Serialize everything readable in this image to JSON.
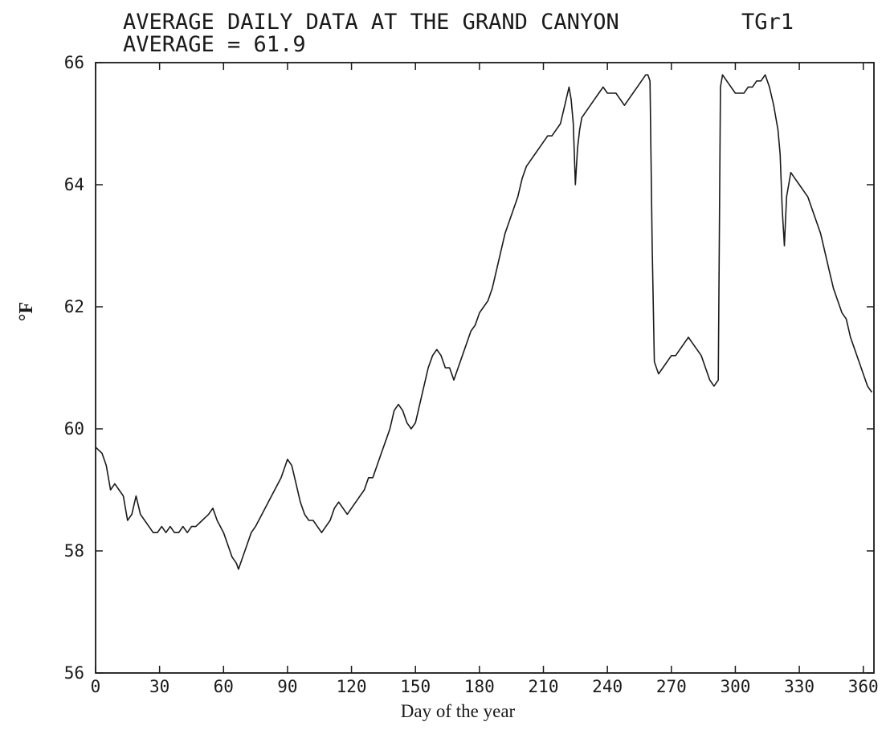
{
  "chart_data": {
    "type": "line",
    "title": "AVERAGE DAILY DATA AT THE GRAND CANYON",
    "title_tag": "TGr1",
    "subtitle": "AVERAGE = 61.9",
    "xlabel": "Day of the year",
    "ylabel": "°F",
    "xlim": [
      0,
      365
    ],
    "ylim": [
      56,
      66
    ],
    "xticks": [
      0,
      30,
      60,
      90,
      120,
      150,
      180,
      210,
      240,
      270,
      300,
      330,
      360
    ],
    "xtick_labels": [
      "0",
      "30",
      "60",
      "90",
      "120",
      "150",
      "180",
      "210",
      "240",
      "270",
      "300",
      "330",
      "360"
    ],
    "yticks": [
      56,
      58,
      60,
      62,
      64,
      66
    ],
    "ytick_labels": [
      "56",
      "58",
      "60",
      "62",
      "64",
      "66"
    ],
    "grid": false,
    "colors": {
      "line": "#1a1a1a",
      "axes": "#1a1a1a"
    },
    "series": [
      {
        "x": [
          0,
          3,
          5,
          7,
          9,
          11,
          13,
          15,
          17,
          19,
          21,
          23,
          25,
          27,
          29,
          31,
          33,
          35,
          37,
          39,
          41,
          43,
          45,
          47,
          50,
          53,
          55,
          57,
          60,
          62,
          64,
          66,
          67,
          69,
          71,
          73,
          75,
          78,
          81,
          84,
          87,
          90,
          92,
          94,
          96,
          98,
          100,
          102,
          104,
          106,
          108,
          110,
          112,
          114,
          116,
          118,
          120,
          122,
          124,
          126,
          128,
          130,
          132,
          134,
          136,
          138,
          140,
          142,
          144,
          146,
          148,
          150,
          152,
          154,
          156,
          158,
          160,
          162,
          164,
          166,
          168,
          170,
          172,
          174,
          176,
          178,
          180,
          182,
          184,
          186,
          188,
          190,
          192,
          194,
          196,
          198,
          200,
          202,
          204,
          206,
          208,
          210,
          212,
          214,
          216,
          218,
          220,
          222,
          223,
          224,
          225,
          226,
          227,
          228,
          230,
          232,
          234,
          236,
          238,
          240,
          242,
          244,
          246,
          248,
          250,
          252,
          254,
          256,
          258,
          259,
          260,
          261,
          262,
          263,
          264,
          266,
          268,
          270,
          272,
          274,
          276,
          278,
          280,
          282,
          284,
          286,
          288,
          290,
          292,
          293,
          294,
          296,
          298,
          300,
          302,
          304,
          306,
          308,
          310,
          312,
          314,
          316,
          318,
          320,
          321,
          322,
          323,
          324,
          326,
          328,
          330,
          332,
          334,
          336,
          338,
          340,
          342,
          344,
          346,
          348,
          350,
          352,
          354,
          356,
          358,
          360,
          362,
          364
        ],
        "values": [
          59.7,
          59.6,
          59.4,
          59.0,
          59.1,
          59.0,
          58.9,
          58.5,
          58.6,
          58.9,
          58.6,
          58.5,
          58.4,
          58.3,
          58.3,
          58.4,
          58.3,
          58.4,
          58.3,
          58.3,
          58.4,
          58.3,
          58.4,
          58.4,
          58.5,
          58.6,
          58.7,
          58.5,
          58.3,
          58.1,
          57.9,
          57.8,
          57.7,
          57.9,
          58.1,
          58.3,
          58.4,
          58.6,
          58.8,
          59.0,
          59.2,
          59.5,
          59.4,
          59.1,
          58.8,
          58.6,
          58.5,
          58.5,
          58.4,
          58.3,
          58.4,
          58.5,
          58.7,
          58.8,
          58.7,
          58.6,
          58.7,
          58.8,
          58.9,
          59.0,
          59.2,
          59.2,
          59.4,
          59.6,
          59.8,
          60.0,
          60.3,
          60.4,
          60.3,
          60.1,
          60.0,
          60.1,
          60.4,
          60.7,
          61.0,
          61.2,
          61.3,
          61.2,
          61.0,
          61.0,
          60.8,
          61.0,
          61.2,
          61.4,
          61.6,
          61.7,
          61.9,
          62.0,
          62.1,
          62.3,
          62.6,
          62.9,
          63.2,
          63.4,
          63.6,
          63.8,
          64.1,
          64.3,
          64.4,
          64.5,
          64.6,
          64.7,
          64.8,
          64.8,
          64.9,
          65.0,
          65.3,
          65.6,
          65.4,
          65.0,
          64.0,
          64.6,
          64.9,
          65.1,
          65.2,
          65.3,
          65.4,
          65.5,
          65.6,
          65.5,
          65.5,
          65.5,
          65.4,
          65.3,
          65.4,
          65.5,
          65.6,
          65.7,
          65.8,
          65.8,
          65.7,
          63.0,
          61.1,
          61.0,
          60.9,
          61.0,
          61.1,
          61.2,
          61.2,
          61.3,
          61.4,
          61.5,
          61.4,
          61.3,
          61.2,
          61.0,
          60.8,
          60.7,
          60.8,
          65.6,
          65.8,
          65.7,
          65.6,
          65.5,
          65.5,
          65.5,
          65.6,
          65.6,
          65.7,
          65.7,
          65.8,
          65.6,
          65.3,
          64.9,
          64.5,
          63.6,
          63.0,
          63.8,
          64.2,
          64.1,
          64.0,
          63.9,
          63.8,
          63.6,
          63.4,
          63.2,
          62.9,
          62.6,
          62.3,
          62.1,
          61.9,
          61.8,
          61.5,
          61.3,
          61.1,
          60.9,
          60.7,
          60.6
        ]
      }
    ]
  }
}
